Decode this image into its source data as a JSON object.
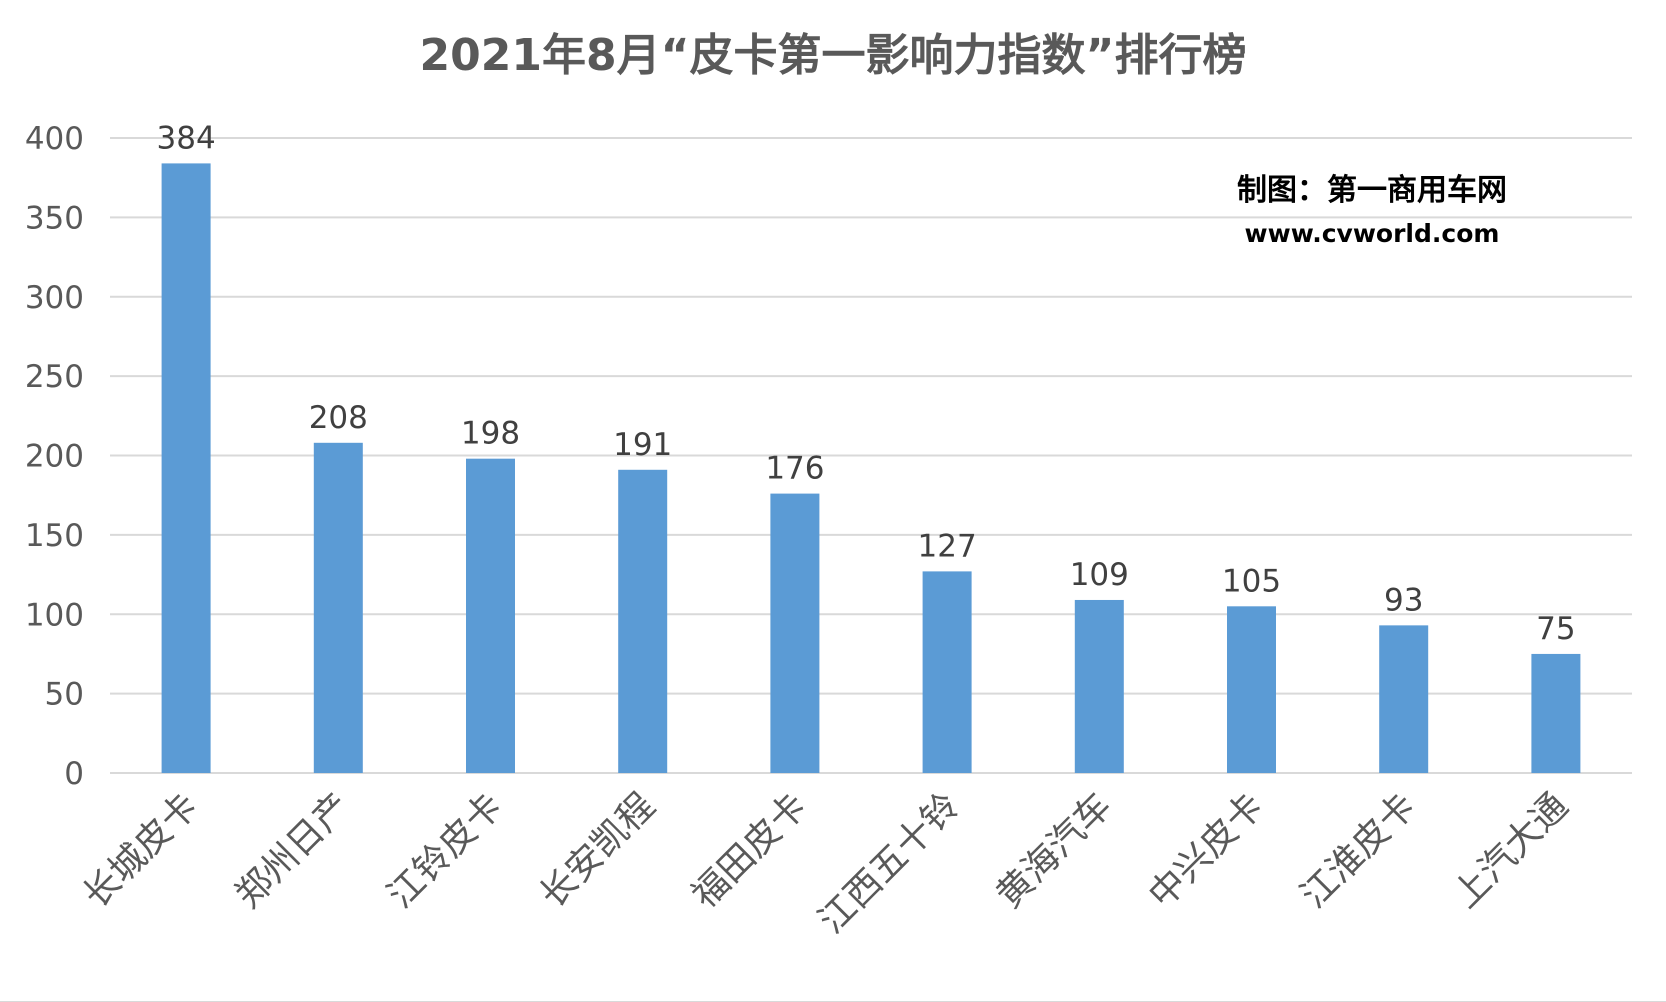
{
  "chart_data": {
    "type": "bar",
    "title": "2021年8月“皮卡第一影响力指数”排行榜",
    "watermark": {
      "line1": "制图：第一商用车网",
      "line2": "www.cvworld.com"
    },
    "categories": [
      "长城皮卡",
      "郑州日产",
      "江铃皮卡",
      "长安凯程",
      "福田皮卡",
      "江西五十铃",
      "黄海汽车",
      "中兴皮卡",
      "江淮皮卡",
      "上汽大通"
    ],
    "values": [
      384,
      208,
      198,
      191,
      176,
      127,
      109,
      105,
      93,
      75
    ],
    "xlabel": "",
    "ylabel": "",
    "ylim": [
      0,
      400
    ],
    "yticks": [
      0,
      50,
      100,
      150,
      200,
      250,
      300,
      350,
      400
    ],
    "grid": true,
    "legend": "none",
    "data_labels": true,
    "colors": {
      "bar": "#5b9bd5",
      "grid": "#d9d9d9",
      "title": "#595959",
      "tick_text": "#595959",
      "data_label": "#404040",
      "watermark": "#000000"
    }
  }
}
